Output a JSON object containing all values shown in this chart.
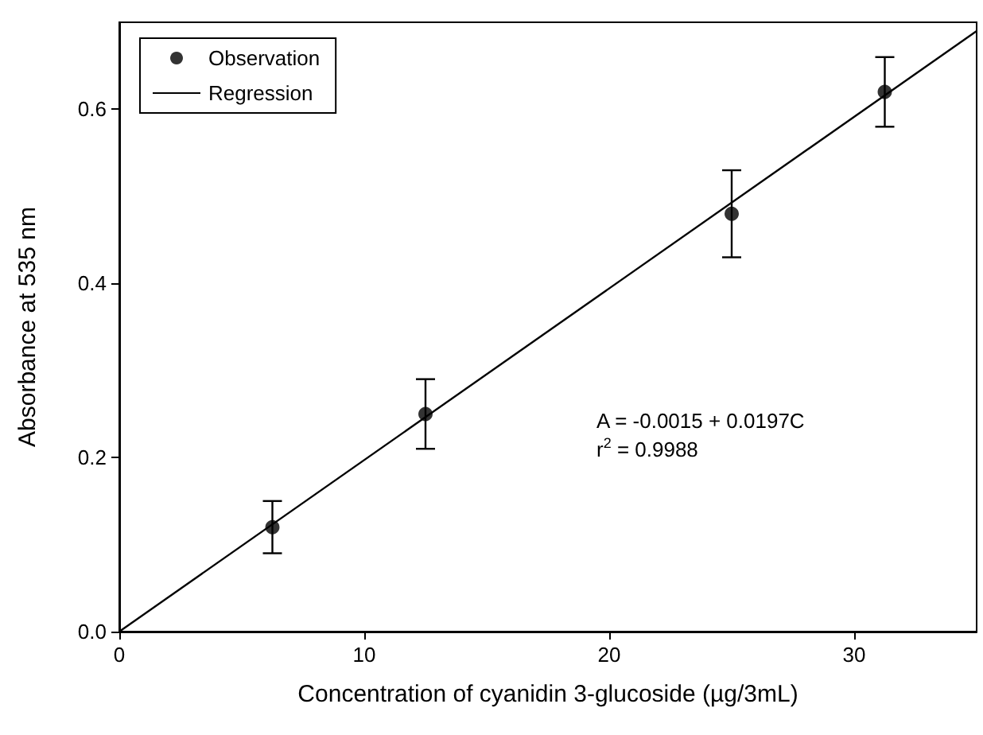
{
  "chart_data": {
    "type": "scatter",
    "xlabel": "Concentration of cyanidin 3-glucoside (µg/3mL)",
    "ylabel": "Absorbance at 535 nm",
    "xlim": [
      0,
      35
    ],
    "xticks": [
      0,
      10,
      20,
      30
    ],
    "ylim": [
      0,
      0.7
    ],
    "yticks": [
      {
        "value": 0,
        "label": "0.0"
      },
      0.2,
      0.4,
      0.6
    ],
    "grid": false,
    "legend": "top left",
    "series": [
      {
        "name": "Observation",
        "color": "#000000",
        "marker": "circle",
        "x": [
          6.25,
          12.5,
          25,
          31.25
        ],
        "values": [
          0.12,
          0.25,
          0.48,
          0.62
        ],
        "errors": [
          [
            0.09,
            0.15
          ],
          [
            0.21,
            0.29
          ],
          [
            0.43,
            0.53
          ],
          [
            0.58,
            0.66
          ]
        ]
      },
      {
        "name": "Regression",
        "type": "line",
        "color": "#000000",
        "marker": "none",
        "x": [
          0,
          35
        ],
        "values": [
          0,
          0.69
        ],
        "line_style": "solid"
      }
    ],
    "annotations": [
      "A = -0.0015 + 0.0197C",
      "r$^{2}$ = 0.9988"
    ]
  }
}
